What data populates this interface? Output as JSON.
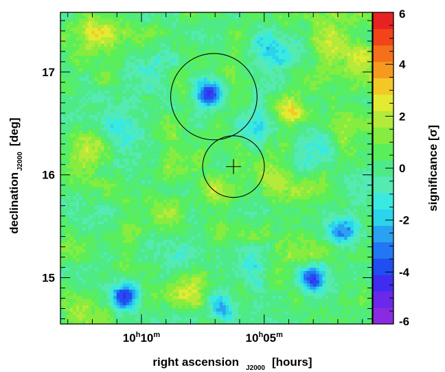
{
  "chart_data": {
    "type": "heatmap",
    "title": "",
    "xlabel": {
      "main": "right ascension",
      "sub": "J2000",
      "unit": "[hours]"
    },
    "ylabel": {
      "main": "declination",
      "sub": "J2000",
      "unit": "[deg]"
    },
    "colorbar_label": "significance [σ]",
    "x_ticks": [
      {
        "hours": "10",
        "minutes": "10",
        "h_unit": "h",
        "m_unit": "m",
        "ra_minutes": 610
      },
      {
        "hours": "10",
        "minutes": "05",
        "h_unit": "h",
        "m_unit": "m",
        "ra_minutes": 605
      }
    ],
    "xlim_ra_minutes": [
      613.3,
      600.6
    ],
    "y_ticks": [
      "15",
      "16",
      "17"
    ],
    "ylim": [
      14.55,
      17.58
    ],
    "colorbar": {
      "range": [
        -6,
        6
      ],
      "ticks": [
        "-6",
        "-4",
        "-2",
        "0",
        "2",
        "4",
        "6"
      ],
      "colors": [
        "#8a2be2",
        "#6a28ea",
        "#3f2cf0",
        "#1f4ff2",
        "#2277f2",
        "#2aa2f2",
        "#2ad4ea",
        "#3aeae0",
        "#55eab2",
        "#4eea88",
        "#5aef5a",
        "#86ec40",
        "#b4ea3a",
        "#e2ea32",
        "#f2c826",
        "#f59a1e",
        "#f5701a",
        "#f24418",
        "#e82222"
      ]
    },
    "circles": [
      {
        "ra_minutes": 607.05,
        "dec": 16.76,
        "radius_deg": 0.42
      },
      {
        "ra_minutes": 606.25,
        "dec": 16.08,
        "radius_deg": 0.3
      }
    ],
    "marker": {
      "symbol": "cross",
      "ra_minutes": 606.25,
      "dec": 16.08
    },
    "hotspots": [
      {
        "ra_minutes": 607.3,
        "dec": 16.8,
        "sigma": -4.5
      },
      {
        "ra_minutes": 610.7,
        "dec": 14.82,
        "sigma": -4.0
      },
      {
        "ra_minutes": 603.0,
        "dec": 14.98,
        "sigma": -3.8
      },
      {
        "ra_minutes": 601.8,
        "dec": 15.46,
        "sigma": -3.0
      },
      {
        "ra_minutes": 606.7,
        "dec": 14.7,
        "sigma": -3.0
      },
      {
        "ra_minutes": 604.7,
        "dec": 17.22,
        "sigma": -2.0
      },
      {
        "ra_minutes": 603.9,
        "dec": 16.62,
        "sigma": 3.2
      },
      {
        "ra_minutes": 611.8,
        "dec": 17.43,
        "sigma": 2.0
      },
      {
        "ra_minutes": 601.2,
        "dec": 17.12,
        "sigma": 2.0
      },
      {
        "ra_minutes": 602.4,
        "dec": 17.3,
        "sigma": 1.8
      },
      {
        "ra_minutes": 608.0,
        "dec": 14.92,
        "sigma": 1.6
      },
      {
        "ra_minutes": 612.2,
        "dec": 16.3,
        "sigma": 1.5
      },
      {
        "ra_minutes": 604.5,
        "dec": 15.95,
        "sigma": 1.4
      },
      {
        "ra_minutes": 609.2,
        "dec": 15.58,
        "sigma": 1.3
      },
      {
        "ra_minutes": 603.6,
        "dec": 15.3,
        "sigma": 1.5
      },
      {
        "ra_minutes": 612.5,
        "dec": 14.7,
        "sigma": 1.2
      },
      {
        "ra_minutes": 605.3,
        "dec": 16.48,
        "sigma": -1.6
      },
      {
        "ra_minutes": 611.0,
        "dec": 16.45,
        "sigma": -1.2
      },
      {
        "ra_minutes": 609.4,
        "dec": 16.98,
        "sigma": -1.3
      },
      {
        "ra_minutes": 602.8,
        "dec": 16.2,
        "sigma": -1.2
      },
      {
        "ra_minutes": 612.6,
        "dec": 15.7,
        "sigma": -1.2
      },
      {
        "ra_minutes": 608.4,
        "dec": 15.2,
        "sigma": -1.1
      },
      {
        "ra_minutes": 601.4,
        "dec": 15.9,
        "sigma": -1.0
      },
      {
        "ra_minutes": 605.6,
        "dec": 15.15,
        "sigma": -1.0
      },
      {
        "ra_minutes": 606.8,
        "dec": 15.8,
        "sigma": 1.0
      }
    ]
  }
}
